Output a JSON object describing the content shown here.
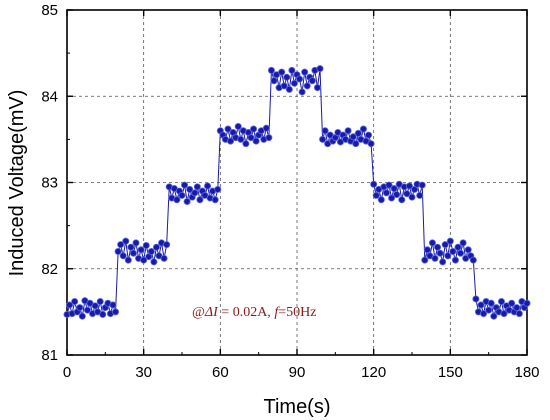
{
  "chart_data": {
    "type": "line",
    "title": "",
    "xlabel": "Time(s)",
    "ylabel": "Induced Voltage(mV)",
    "xlim": [
      0,
      180
    ],
    "ylim": [
      81,
      85
    ],
    "x_ticks": [
      0,
      30,
      60,
      90,
      120,
      150,
      180
    ],
    "y_ticks": [
      81,
      82,
      83,
      84,
      85
    ],
    "grid": true,
    "legend": "none",
    "marker": "circle",
    "colors": {
      "series": "#1a1aa8",
      "marker_highlight": "#5a6ae0",
      "axes": "#000000",
      "grid": "#555555",
      "annotation": "#8b1a1a"
    },
    "annotation": {
      "prefix": "@",
      "symbol": "ΔI",
      "equals": " = 0.02A, ",
      "f_symbol": "f",
      "f_value": "=50Hz"
    },
    "step_levels": [
      {
        "x_start": 0,
        "x_end": 20,
        "value": 81.55
      },
      {
        "x_start": 20,
        "x_end": 40,
        "value": 82.2
      },
      {
        "x_start": 40,
        "x_end": 60,
        "value": 82.88
      },
      {
        "x_start": 60,
        "x_end": 80,
        "value": 83.55
      },
      {
        "x_start": 80,
        "x_end": 100,
        "value": 84.2
      },
      {
        "x_start": 100,
        "x_end": 120,
        "value": 83.52
      },
      {
        "x_start": 120,
        "x_end": 140,
        "value": 82.88
      },
      {
        "x_start": 140,
        "x_end": 160,
        "value": 82.2
      },
      {
        "x_start": 160,
        "x_end": 180,
        "value": 81.55
      }
    ],
    "series": [
      {
        "x": [
          0,
          1,
          2,
          3,
          4,
          5,
          6,
          7,
          8,
          9,
          10,
          11,
          12,
          13,
          14,
          15,
          16,
          17,
          18,
          19,
          20,
          21,
          22,
          23,
          24,
          25,
          26,
          27,
          28,
          29,
          30,
          31,
          32,
          33,
          34,
          35,
          36,
          37,
          38,
          39,
          40,
          41,
          42,
          43,
          44,
          45,
          46,
          47,
          48,
          49,
          50,
          51,
          52,
          53,
          54,
          55,
          56,
          57,
          58,
          59,
          60,
          61,
          62,
          63,
          64,
          65,
          66,
          67,
          68,
          69,
          70,
          71,
          72,
          73,
          74,
          75,
          76,
          77,
          78,
          79,
          80,
          81,
          82,
          83,
          84,
          85,
          86,
          87,
          88,
          89,
          90,
          91,
          92,
          93,
          94,
          95,
          96,
          97,
          98,
          99,
          100,
          101,
          102,
          103,
          104,
          105,
          106,
          107,
          108,
          109,
          110,
          111,
          112,
          113,
          114,
          115,
          116,
          117,
          118,
          119,
          120,
          121,
          122,
          123,
          124,
          125,
          126,
          127,
          128,
          129,
          130,
          131,
          132,
          133,
          134,
          135,
          136,
          137,
          138,
          139,
          140,
          141,
          142,
          143,
          144,
          145,
          146,
          147,
          148,
          149,
          150,
          151,
          152,
          153,
          154,
          155,
          156,
          157,
          158,
          159,
          160,
          161,
          162,
          163,
          164,
          165,
          166,
          167,
          168,
          169,
          170,
          171,
          172,
          173,
          174,
          175,
          176,
          177,
          178,
          179,
          180
        ],
        "y": [
          81.47,
          81.58,
          81.48,
          81.62,
          81.5,
          81.55,
          81.45,
          81.63,
          81.52,
          81.6,
          81.48,
          81.57,
          81.5,
          81.62,
          81.47,
          81.55,
          81.6,
          81.48,
          81.58,
          81.5,
          82.2,
          82.28,
          82.15,
          82.32,
          82.1,
          82.25,
          82.18,
          82.3,
          82.12,
          82.22,
          82.1,
          82.27,
          82.14,
          82.2,
          82.08,
          82.25,
          82.15,
          82.3,
          82.12,
          82.28,
          82.95,
          82.82,
          82.93,
          82.8,
          82.9,
          82.85,
          82.97,
          82.78,
          82.92,
          82.83,
          82.88,
          82.95,
          82.8,
          82.9,
          82.85,
          82.96,
          82.82,
          82.9,
          82.8,
          82.92,
          83.6,
          83.55,
          83.5,
          83.62,
          83.48,
          83.58,
          83.52,
          83.65,
          83.5,
          83.6,
          83.45,
          83.58,
          83.52,
          83.62,
          83.48,
          83.55,
          83.6,
          83.5,
          83.63,
          83.52,
          84.3,
          84.18,
          84.25,
          84.1,
          84.28,
          84.12,
          84.22,
          84.08,
          84.3,
          84.15,
          84.25,
          84.2,
          84.05,
          84.28,
          84.12,
          84.22,
          84.18,
          84.3,
          84.1,
          84.32,
          83.5,
          83.6,
          83.45,
          83.55,
          83.48,
          83.52,
          83.58,
          83.47,
          83.55,
          83.5,
          83.6,
          83.48,
          83.53,
          83.45,
          83.57,
          83.5,
          83.62,
          83.48,
          83.55,
          83.45,
          82.98,
          82.85,
          82.92,
          82.8,
          82.95,
          82.88,
          82.97,
          82.82,
          82.93,
          82.86,
          82.98,
          82.8,
          82.95,
          82.87,
          82.96,
          82.83,
          82.92,
          82.98,
          82.85,
          82.97,
          82.1,
          82.22,
          82.15,
          82.3,
          82.12,
          82.25,
          82.18,
          82.08,
          82.28,
          82.15,
          82.32,
          82.2,
          82.1,
          82.25,
          82.18,
          82.3,
          82.12,
          82.22,
          82.15,
          82.1,
          81.65,
          81.5,
          81.58,
          81.48,
          81.62,
          81.52,
          81.6,
          81.45,
          81.55,
          81.5,
          81.62,
          81.48,
          81.57,
          81.52,
          81.6,
          81.5,
          81.55,
          81.48,
          81.62,
          81.55,
          81.6
        ]
      }
    ]
  }
}
